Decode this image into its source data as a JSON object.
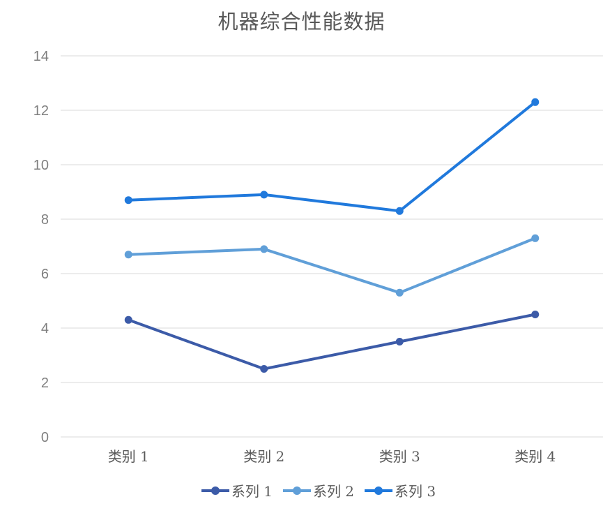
{
  "chart_data": {
    "type": "line",
    "title": "机器综合性能数据",
    "categories": [
      "类别 1",
      "类别 2",
      "类别 3",
      "类别 4"
    ],
    "series": [
      {
        "name": "系列 1",
        "color": "#3C5BA8",
        "values": [
          4.3,
          2.5,
          3.5,
          4.5
        ]
      },
      {
        "name": "系列 2",
        "color": "#609FD8",
        "values": [
          6.7,
          6.9,
          5.3,
          7.3
        ]
      },
      {
        "name": "系列 3",
        "color": "#2079DC",
        "values": [
          8.7,
          8.9,
          8.3,
          12.3
        ]
      }
    ],
    "xlabel": "",
    "ylabel": "",
    "ylim": [
      0,
      14
    ],
    "yticks": [
      0,
      2,
      4,
      6,
      8,
      10,
      12,
      14
    ],
    "grid": true,
    "legend_position": "bottom",
    "marker": "circle",
    "colors": {
      "grid_line": "#d9d9d9",
      "tick_label": "#7f7f7f",
      "category_label": "#5a5a5a",
      "title_text": "#595959",
      "legend_text": "#595959",
      "background": "#ffffff"
    }
  }
}
